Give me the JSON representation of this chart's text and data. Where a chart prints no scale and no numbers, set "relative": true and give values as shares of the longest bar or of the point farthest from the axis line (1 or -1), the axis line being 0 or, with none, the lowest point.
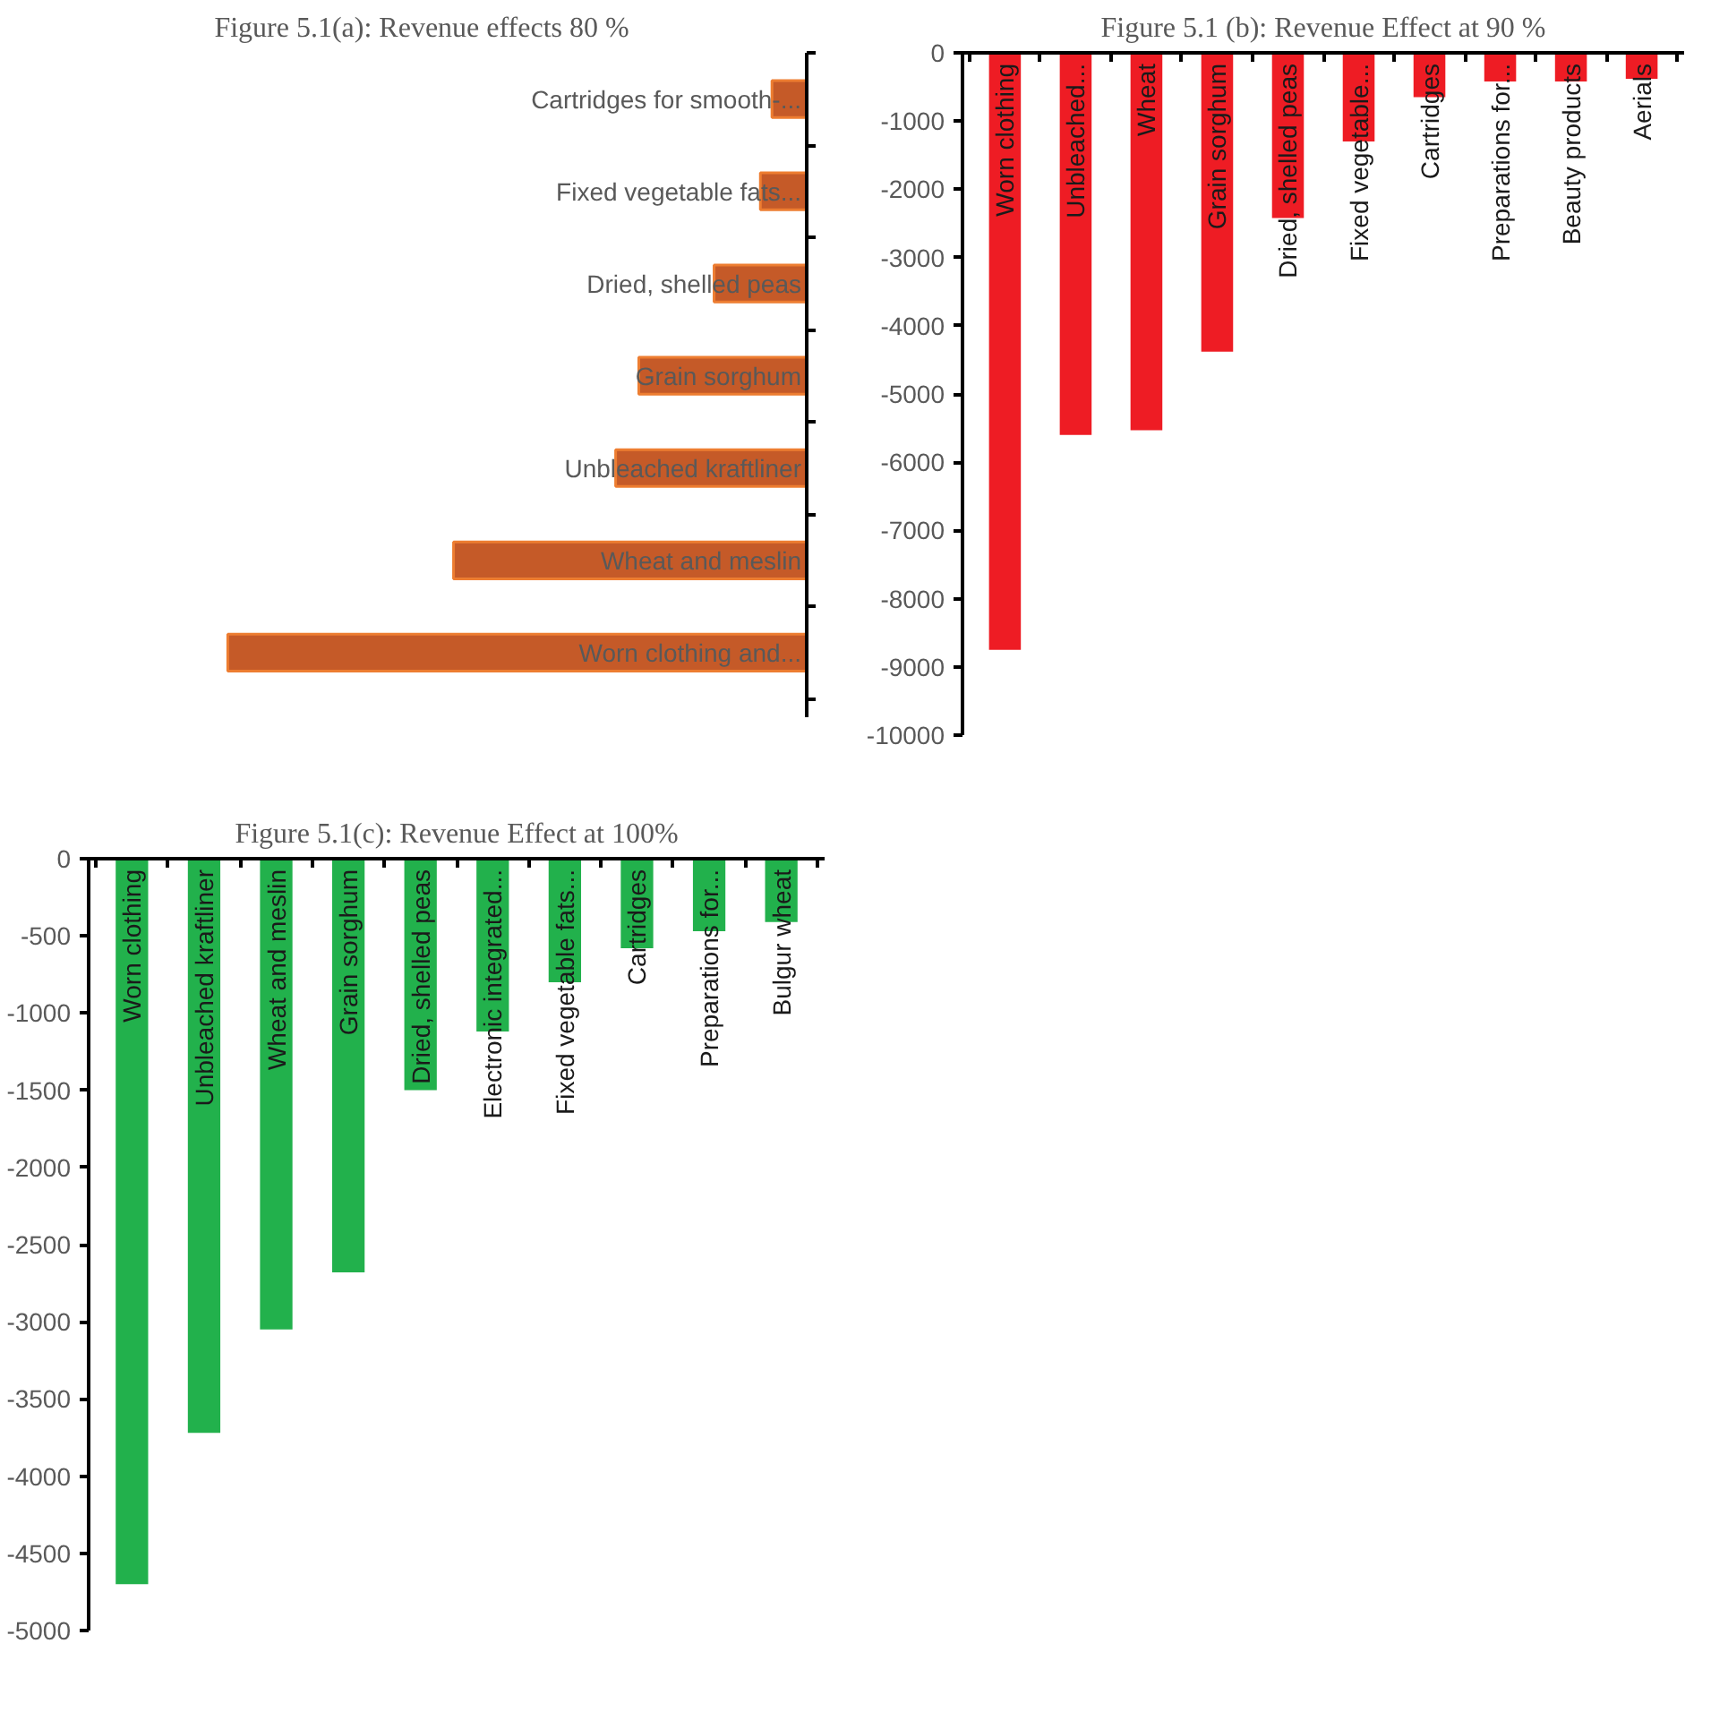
{
  "chart_data": [
    {
      "type": "bar",
      "title": "Figure 5.1(a): Revenue effects 80 %",
      "orientation": "horizontal",
      "relative": true,
      "color": "#c55a28",
      "categories": [
        "Cartridges for smooth-...",
        "Fixed vegetable fats...",
        "Dried, shelled peas",
        "Grain sorghum",
        "Unbleached kraftliner",
        "Wheat and meslin",
        "Worn clothing and..."
      ],
      "values": [
        -0.06,
        -0.08,
        -0.16,
        -0.29,
        -0.33,
        -0.61,
        -1
      ]
    },
    {
      "type": "bar",
      "title": "Figure 5.1 (b): Revenue Effect at 90 %",
      "color": "#ee1c24",
      "categories": [
        "Worn clothing",
        "Unbleached...",
        "Wheat",
        "Grain sorghum",
        "Dried, shelled peas",
        "Fixed vegetable...",
        "Cartridges",
        "Preparations for...",
        "Beauty products",
        "Aerials"
      ],
      "values": [
        -8750,
        -5600,
        -5530,
        -4380,
        -2420,
        -1300,
        -650,
        -420,
        -420,
        -380
      ],
      "ylim": [
        -10000,
        0
      ],
      "yticks": [
        -10000,
        -9000,
        -8000,
        -7000,
        -6000,
        -5000,
        -4000,
        -3000,
        -2000,
        -1000,
        0
      ]
    },
    {
      "type": "bar",
      "title": "Figure 5.1(c): Revenue Effect at 100%",
      "color": "#22b14c",
      "categories": [
        "Worn clothing",
        "Unbleached kraftliner",
        "Wheat and meslin",
        "Grain sorghum",
        "Dried, shelled peas",
        "Electronic integrated...",
        "Fixed vegetable fats...",
        "Cartridges",
        "Preparations for...",
        "Bulgur wheat"
      ],
      "values": [
        -4700,
        -3720,
        -3050,
        -2680,
        -1500,
        -1120,
        -800,
        -580,
        -470,
        -410
      ],
      "ylim": [
        -5000,
        0
      ],
      "yticks": [
        -5000,
        -4500,
        -4000,
        -3500,
        -3000,
        -2500,
        -2000,
        -1500,
        -1000,
        -500,
        0
      ]
    }
  ]
}
